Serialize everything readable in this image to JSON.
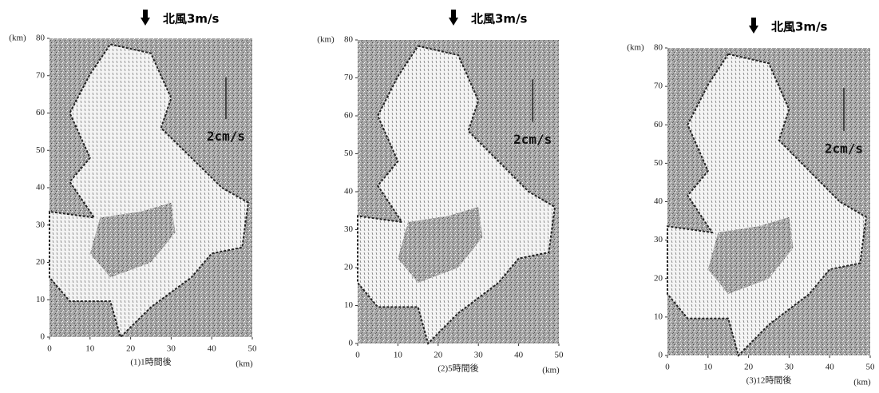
{
  "panels": [
    {
      "wind_label": "北風3m/s",
      "scale_label": "2cm/s",
      "y_unit": "(km)",
      "x_unit": "(km)",
      "caption": "(1)1時間後",
      "xlim": [
        0,
        50
      ],
      "ylim": [
        0,
        80
      ],
      "xticks": [
        0,
        10,
        20,
        30,
        40,
        50
      ],
      "yticks": [
        0,
        10,
        20,
        30,
        40,
        50,
        60,
        70,
        80
      ]
    },
    {
      "wind_label": "北風3m/s",
      "scale_label": "2cm/s",
      "y_unit": "(km)",
      "x_unit": "(km)",
      "caption": "(2)5時間後",
      "xlim": [
        0,
        50
      ],
      "ylim": [
        0,
        80
      ],
      "xticks": [
        0,
        10,
        20,
        30,
        40,
        50
      ],
      "yticks": [
        0,
        10,
        20,
        30,
        40,
        50,
        60,
        70,
        80
      ]
    },
    {
      "wind_label": "北風3m/s",
      "scale_label": "2cm/s",
      "y_unit": "(km)",
      "x_unit": "(km)",
      "caption": "(3)12時間後",
      "xlim": [
        0,
        50
      ],
      "ylim": [
        0,
        80
      ],
      "xticks": [
        0,
        10,
        20,
        30,
        40,
        50
      ],
      "yticks": [
        0,
        10,
        20,
        30,
        40,
        50,
        60,
        70,
        80
      ]
    }
  ]
}
